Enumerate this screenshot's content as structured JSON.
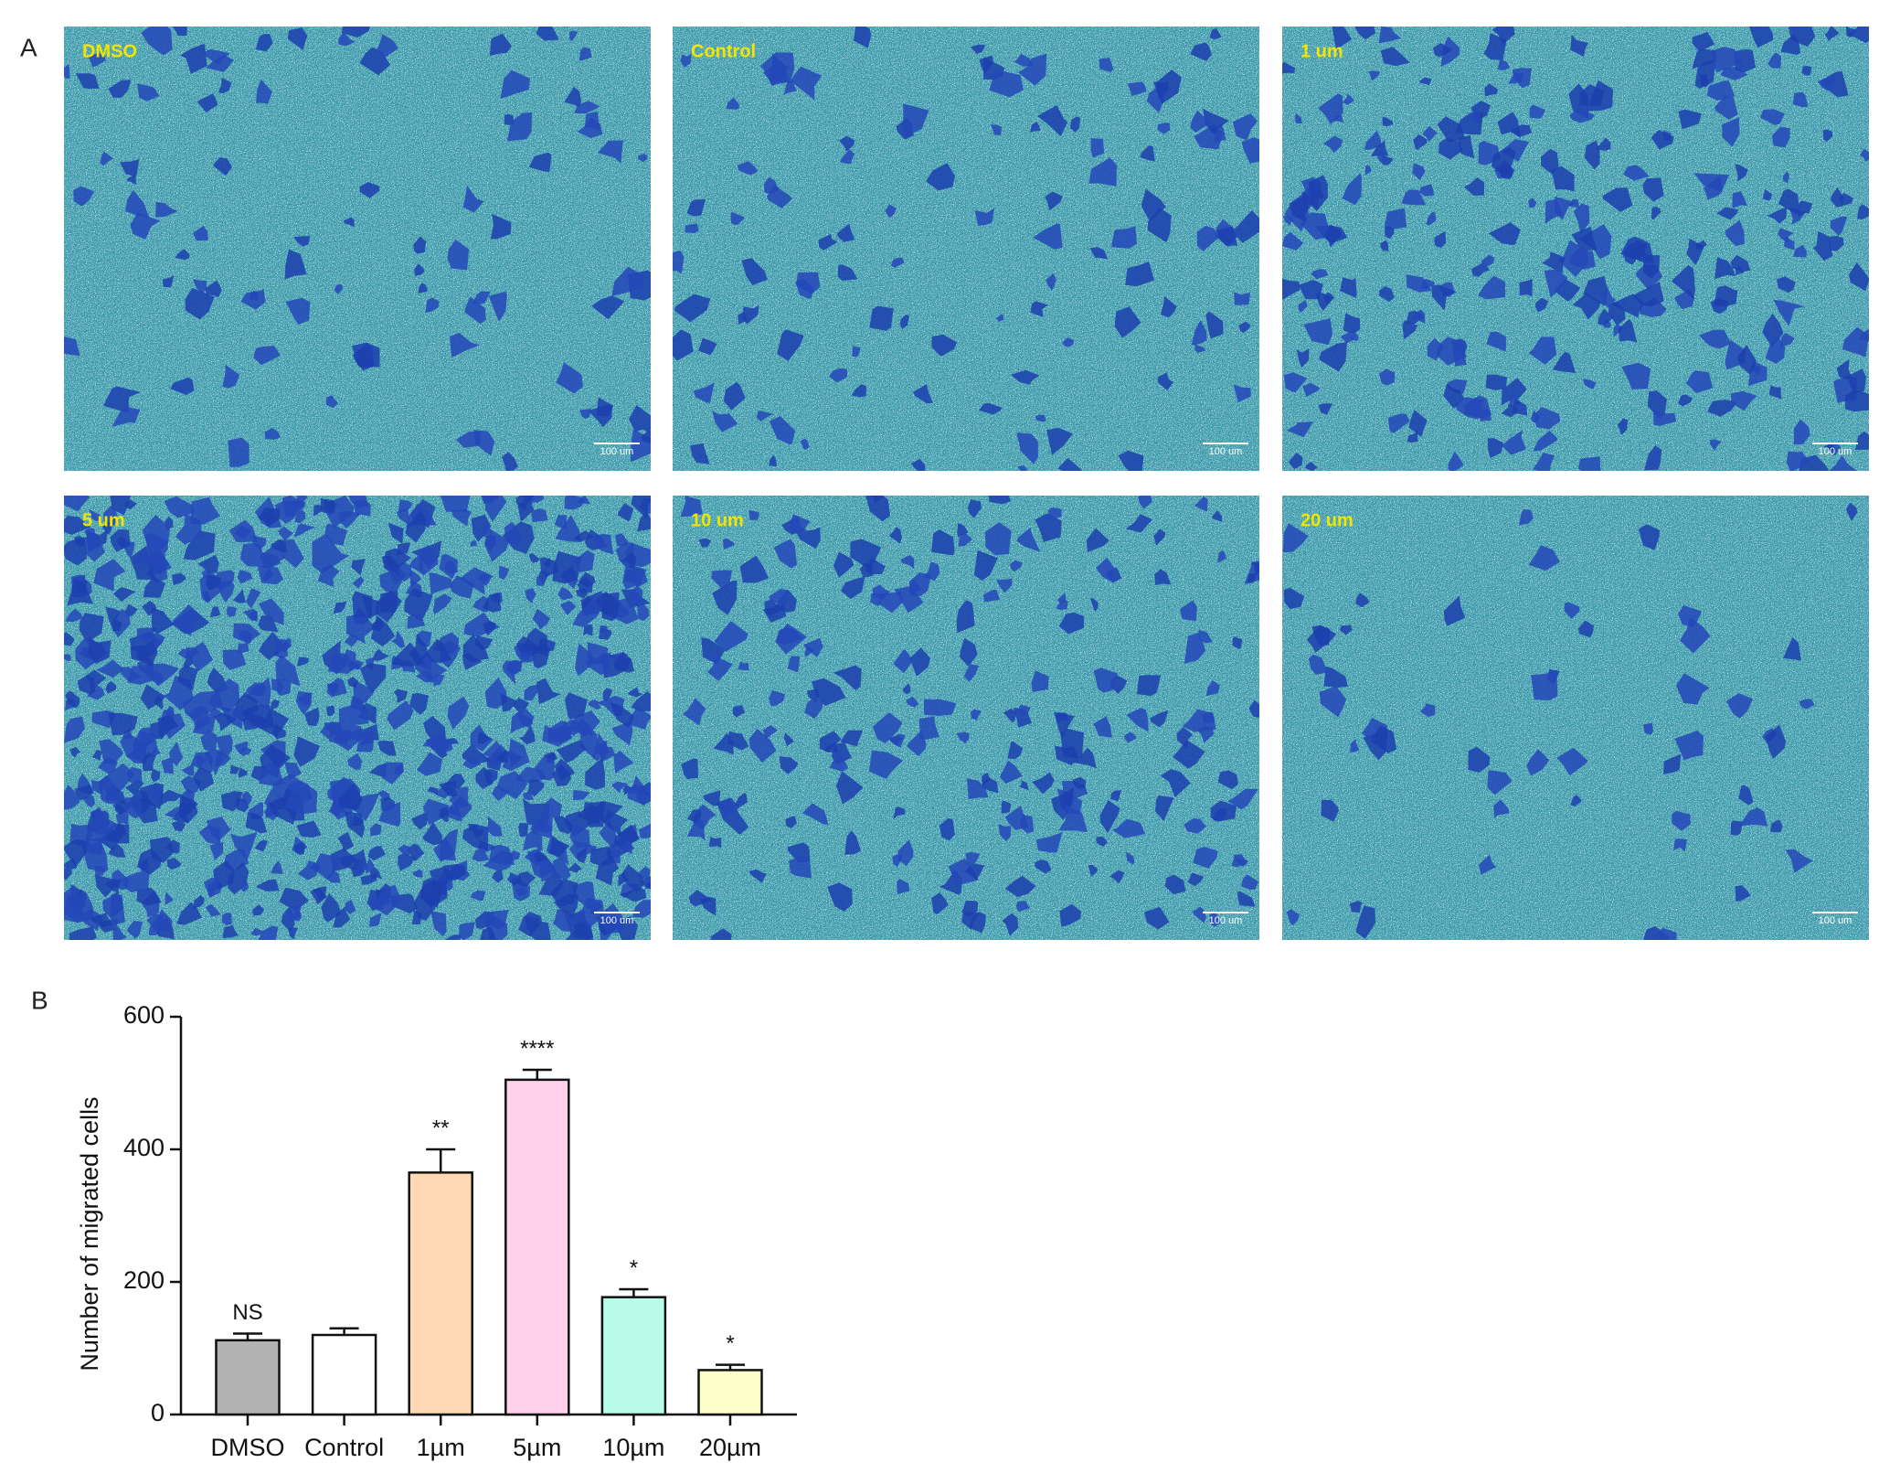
{
  "panel_a": {
    "label": "A",
    "images": [
      {
        "label": "DMSO",
        "scale_bar": "100 um"
      },
      {
        "label": "Control",
        "scale_bar": "100 um"
      },
      {
        "label": "1 um",
        "scale_bar": "100 um"
      },
      {
        "label": "5 um",
        "scale_bar": "100 um"
      },
      {
        "label": "10 um",
        "scale_bar": "100 um"
      },
      {
        "label": "20 um",
        "scale_bar": "100 um"
      }
    ]
  },
  "panel_b": {
    "label": "B"
  },
  "chart_data": {
    "type": "bar",
    "ylabel": "Number of migrated cells",
    "categories": [
      "DMSO",
      "Control",
      "1µm",
      "5µm",
      "10µm",
      "20µm"
    ],
    "values": [
      112,
      120,
      365,
      505,
      177,
      67
    ],
    "errors": [
      10,
      10,
      35,
      15,
      12,
      8
    ],
    "annotations": [
      "NS",
      null,
      "**",
      "****",
      "*",
      "*"
    ],
    "colors": [
      "#b3b3b3",
      "#ffffff",
      "#ffd9b3",
      "#ffd1ec",
      "#b8fbe8",
      "#ffffcc"
    ],
    "ylim": [
      0,
      600
    ],
    "yticks": [
      0,
      200,
      400,
      600
    ]
  }
}
